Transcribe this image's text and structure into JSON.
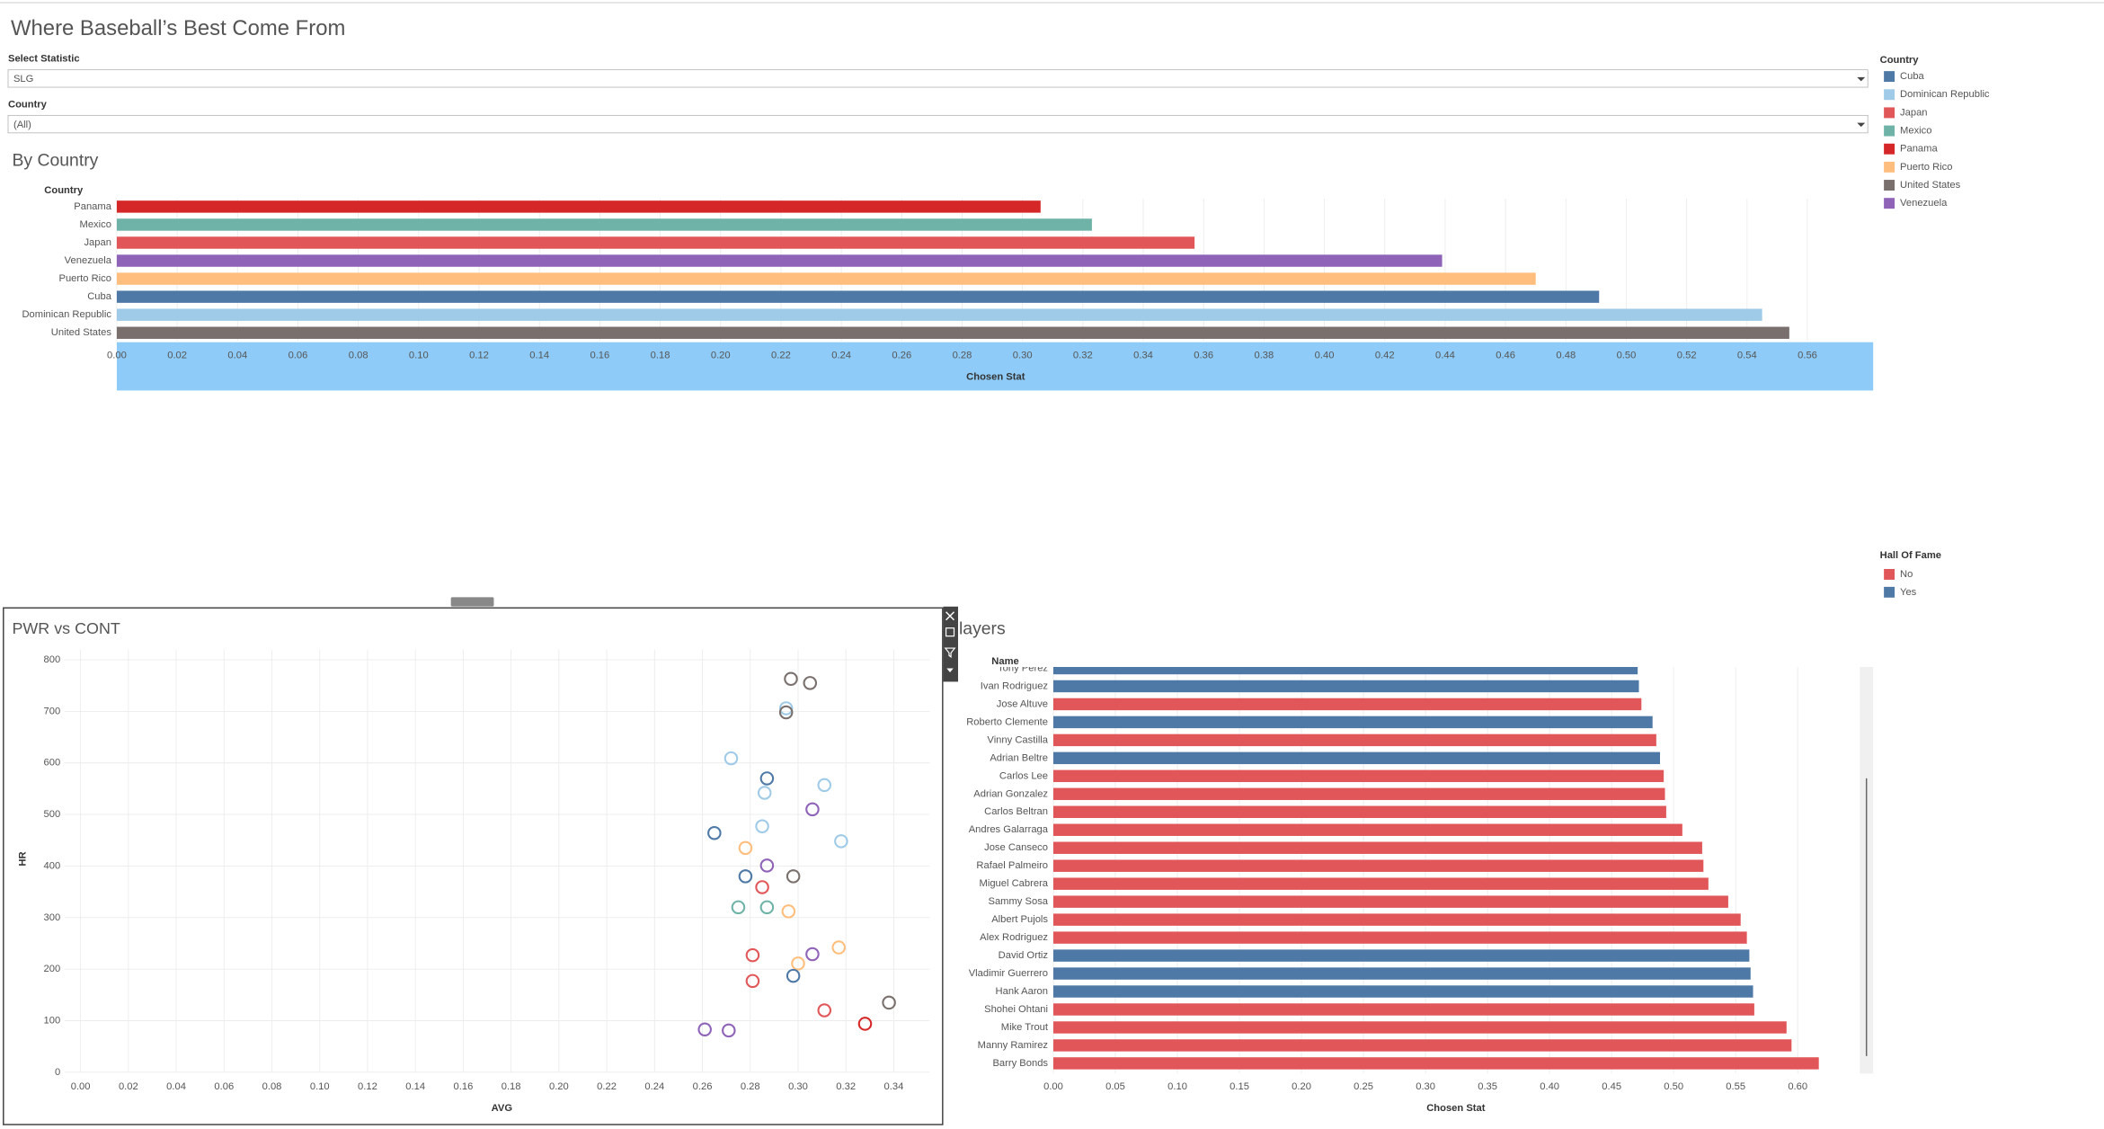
{
  "header": {
    "title": "Where Baseball’s Best Come From"
  },
  "filters": [
    {
      "label": "Select Statistic",
      "value": "SLG"
    },
    {
      "label": "Country",
      "value": "(All)"
    }
  ],
  "legends": [
    {
      "title": "Country",
      "items": [
        {
          "label": "Cuba",
          "color": "#4e79a7"
        },
        {
          "label": "Dominican Republic",
          "color": "#a0cbe8"
        },
        {
          "label": "Japan",
          "color": "#e15759"
        },
        {
          "label": "Mexico",
          "color": "#6fb3a8"
        },
        {
          "label": "Panama",
          "color": "#d62728"
        },
        {
          "label": "Puerto Rico",
          "color": "#ffbe7d"
        },
        {
          "label": "United States",
          "color": "#79706e"
        },
        {
          "label": "Venezuela",
          "color": "#8e63b8"
        }
      ]
    },
    {
      "title": "Hall Of Fame",
      "items": [
        {
          "label": "No",
          "color": "#e15759"
        },
        {
          "label": "Yes",
          "color": "#4e79a7"
        }
      ]
    }
  ],
  "chart_data": [
    {
      "type": "bar",
      "orientation": "horizontal",
      "title": "By Country",
      "y_label": "Country",
      "x_label": "Chosen Stat",
      "categories": [
        "Panama",
        "Mexico",
        "Japan",
        "Venezuela",
        "Puerto Rico",
        "Cuba",
        "Dominican Republic",
        "United States"
      ],
      "values": [
        0.306,
        0.323,
        0.357,
        0.439,
        0.47,
        0.491,
        0.545,
        0.554
      ],
      "colors": [
        "#d62728",
        "#6fb3a8",
        "#e15759",
        "#8e63b8",
        "#ffbe7d",
        "#4e79a7",
        "#a0cbe8",
        "#79706e"
      ],
      "xlim": [
        0,
        0.582
      ],
      "xticks": [
        {
          "value": 0,
          "label": "0.00"
        },
        0.02,
        0.04,
        0.06,
        0.08,
        {
          "value": 0.1,
          "label": "0.10"
        },
        0.12,
        0.14,
        0.16,
        0.18,
        {
          "value": 0.2,
          "label": "0.20"
        },
        0.22,
        0.24,
        0.26,
        0.28,
        {
          "value": 0.3,
          "label": "0.30"
        },
        0.32,
        0.34,
        0.36,
        0.38,
        {
          "value": 0.4,
          "label": "0.40"
        },
        0.42,
        0.44,
        0.46,
        0.48,
        {
          "value": 0.5,
          "label": "0.50"
        },
        0.52,
        0.54,
        0.56
      ],
      "grid": true
    },
    {
      "type": "scatter",
      "title": "PWR vs CONT",
      "x_label": "AVG",
      "y_label": "HR",
      "x": [
        0.297,
        0.305,
        0.295,
        0.295,
        0.272,
        0.287,
        0.311,
        0.286,
        0.306,
        0.285,
        0.265,
        0.318,
        0.278,
        0.287,
        0.278,
        0.298,
        0.285,
        0.275,
        0.287,
        0.296,
        0.317,
        0.281,
        0.306,
        0.3,
        0.281,
        0.298,
        0.338,
        0.311,
        0.328,
        0.261,
        0.271
      ],
      "values": [
        763,
        755,
        706,
        698,
        609,
        570,
        557,
        542,
        510,
        477,
        464,
        448,
        435,
        401,
        380,
        380,
        359,
        320,
        320,
        312,
        242,
        227,
        229,
        211,
        177,
        187,
        135,
        120,
        94,
        83,
        81
      ],
      "colors": [
        "#79706e",
        "#79706e",
        "#a0cbe8",
        "#79706e",
        "#a0cbe8",
        "#4e79a7",
        "#a0cbe8",
        "#a0cbe8",
        "#8e63b8",
        "#a0cbe8",
        "#4e79a7",
        "#a0cbe8",
        "#ffbe7d",
        "#8e63b8",
        "#4e79a7",
        "#79706e",
        "#e15759",
        "#6fb3a8",
        "#6fb3a8",
        "#ffbe7d",
        "#ffbe7d",
        "#e15759",
        "#8e63b8",
        "#ffbe7d",
        "#e15759",
        "#4e79a7",
        "#79706e",
        "#e15759",
        "#d62728",
        "#8e63b8",
        "#8e63b8"
      ],
      "xlim": [
        0,
        0.355
      ],
      "ylim": [
        0,
        820
      ],
      "xticks": [
        {
          "value": 0,
          "label": "0.00"
        },
        0.02,
        0.04,
        0.06,
        0.08,
        {
          "value": 0.1,
          "label": "0.10"
        },
        0.12,
        0.14,
        0.16,
        0.18,
        {
          "value": 0.2,
          "label": "0.20"
        },
        0.22,
        0.24,
        0.26,
        0.28,
        {
          "value": 0.3,
          "label": "0.30"
        },
        0.32,
        0.34
      ],
      "yticks": [
        0,
        100,
        200,
        300,
        400,
        500,
        600,
        700,
        800
      ],
      "grid": true
    },
    {
      "type": "bar",
      "orientation": "horizontal",
      "title": "Players",
      "y_label": "Name",
      "x_label": "Chosen Stat",
      "categories": [
        "Tony Perez",
        "Ivan Rodriguez",
        "Jose Altuve",
        "Roberto Clemente",
        "Vinny Castilla",
        "Adrian Beltre",
        "Carlos Lee",
        "Adrian Gonzalez",
        "Carlos Beltran",
        "Andres Galarraga",
        "Jose Canseco",
        "Rafael Palmeiro",
        "Miguel Cabrera",
        "Sammy Sosa",
        "Albert Pujols",
        "Alex Rodriguez",
        "David Ortiz",
        "Vladimir Guerrero",
        "Hank Aaron",
        "Shohei Ohtani",
        "Mike Trout",
        "Manny Ramirez",
        "Barry Bonds"
      ],
      "values": [
        0.471,
        0.472,
        0.474,
        0.483,
        0.486,
        0.489,
        0.492,
        0.493,
        0.494,
        0.507,
        0.523,
        0.524,
        0.528,
        0.544,
        0.554,
        0.559,
        0.561,
        0.562,
        0.564,
        0.565,
        0.591,
        0.595,
        0.617
      ],
      "colors": [
        "#4e79a7",
        "#4e79a7",
        "#e15759",
        "#4e79a7",
        "#e15759",
        "#4e79a7",
        "#e15759",
        "#e15759",
        "#e15759",
        "#e15759",
        "#e15759",
        "#e15759",
        "#e15759",
        "#e15759",
        "#e15759",
        "#e15759",
        "#4e79a7",
        "#4e79a7",
        "#4e79a7",
        "#e15759",
        "#e15759",
        "#e15759",
        "#e15759"
      ],
      "xlim": [
        0,
        0.65
      ],
      "xticks": [
        {
          "value": 0,
          "label": "0.00"
        },
        0.05,
        {
          "value": 0.1,
          "label": "0.10"
        },
        0.15,
        {
          "value": 0.2,
          "label": "0.20"
        },
        0.25,
        {
          "value": 0.3,
          "label": "0.30"
        },
        0.35,
        {
          "value": 0.4,
          "label": "0.40"
        },
        0.45,
        {
          "value": 0.5,
          "label": "0.50"
        },
        0.55,
        {
          "value": 0.6,
          "label": "0.60"
        }
      ],
      "grid": true
    }
  ]
}
